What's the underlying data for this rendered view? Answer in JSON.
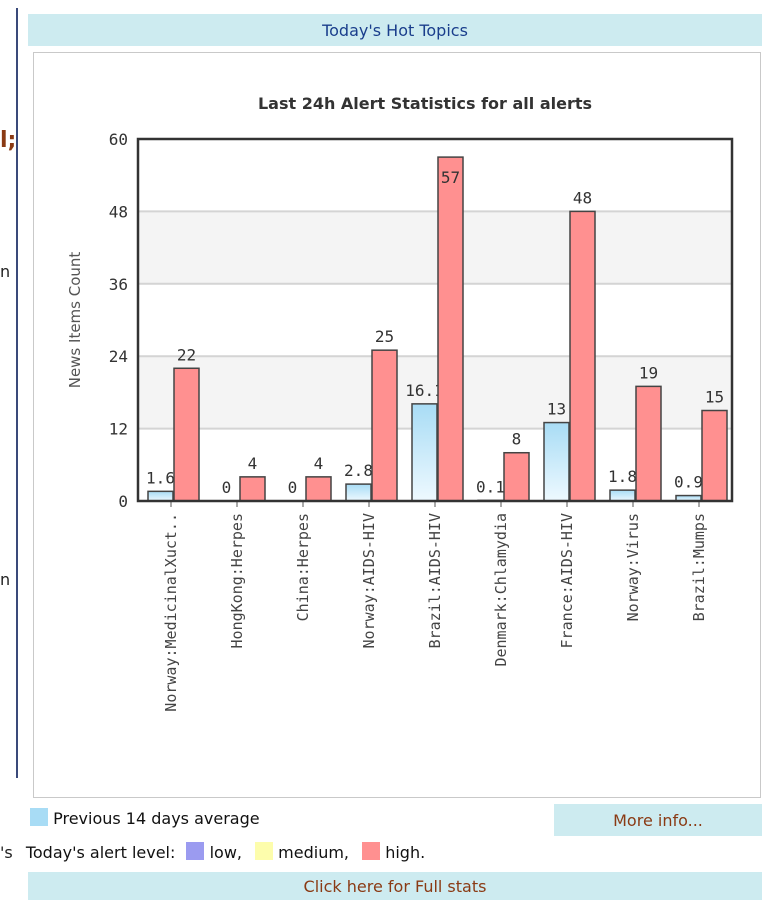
{
  "left_fragments": [
    "l;",
    "n",
    "n"
  ],
  "header": {
    "title": "Today's Hot Topics"
  },
  "chart_data": {
    "type": "bar",
    "title": "Last 24h Alert Statistics for all alerts",
    "ylabel": "News Items Count",
    "xlabel": "",
    "ylim": [
      0,
      60
    ],
    "yticks": [
      0,
      12,
      24,
      36,
      48,
      60
    ],
    "grid": true,
    "categories": [
      "Norway:MedicinalXuct..",
      "HongKong:Herpes",
      "China:Herpes",
      "Norway:AIDS-HIV",
      "Brazil:AIDS-HIV",
      "Denmark:Chlamydia",
      "France:AIDS-HIV",
      "Norway:Virus",
      "Brazil:Mumps"
    ],
    "series": [
      {
        "name": "Previous 14 days average",
        "color": "#a8dcf5",
        "values": [
          1.6,
          0,
          0,
          2.8,
          16.1,
          0.1,
          13,
          1.8,
          0.9
        ],
        "labels": [
          "1.6",
          "0",
          "0",
          "2.8",
          "16.1",
          "0.1",
          "13",
          "1.8",
          "0.9"
        ]
      },
      {
        "name": "high.",
        "color": "#ff9090",
        "values": [
          22,
          4,
          4,
          25,
          57,
          8,
          48,
          19,
          15
        ],
        "labels": [
          "22",
          "4",
          "4",
          "25",
          "57",
          "8",
          "48",
          "19",
          "15"
        ]
      }
    ]
  },
  "legend": {
    "avg_label": "Previous 14 days average",
    "avg_color": "#a8dcf5"
  },
  "more_info": {
    "label": "More info..."
  },
  "alert_level": {
    "prefix_fragment": "'s",
    "label": "Today's alert level:",
    "low_label": "low,",
    "low_color": "#9b9bf0",
    "medium_label": "medium,",
    "medium_color": "#fdfdac",
    "high_label": "high.",
    "high_color": "#ff9090"
  },
  "full_stats": {
    "label": "Click here for Full stats"
  }
}
